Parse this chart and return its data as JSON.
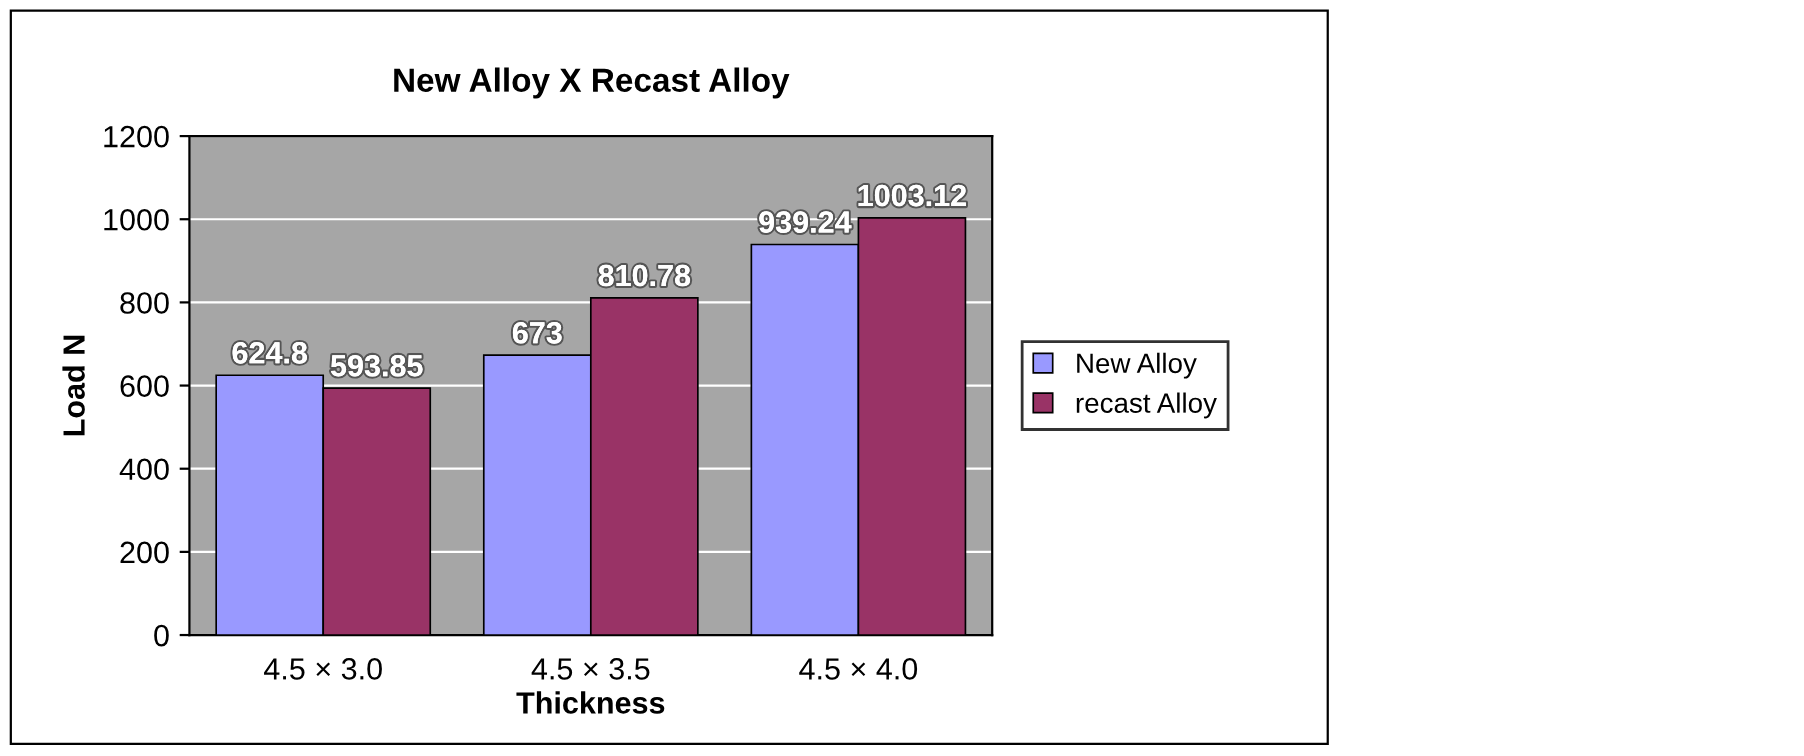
{
  "chart_data": {
    "type": "bar",
    "title": "New Alloy X Recast Alloy",
    "xlabel": "Thickness",
    "ylabel": "Load N",
    "categories": [
      "4.5 × 3.0",
      "4.5 × 3.5",
      "4.5 × 4.0"
    ],
    "series": [
      {
        "name": "New Alloy",
        "color": "#9999ff",
        "values": [
          624.8,
          673,
          939.24
        ]
      },
      {
        "name": "recast Alloy",
        "color": "#993366",
        "values": [
          593.85,
          810.78,
          1003.12
        ]
      }
    ],
    "ylim": [
      0,
      1200
    ],
    "yticks": [
      0,
      200,
      400,
      600,
      800,
      1000,
      1200
    ],
    "grid": "y",
    "legend": "right",
    "data_labels": true
  }
}
